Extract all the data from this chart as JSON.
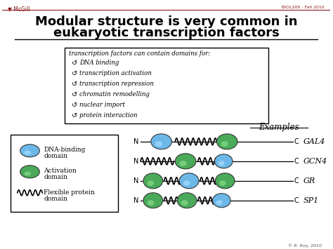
{
  "title_line1": "Modular structure is very common in",
  "title_line2": "eukaryotic transcription factors",
  "header_left": "McGill",
  "header_right": "BIOL200 - Fall 2010",
  "header_color": "#8B1A1A",
  "bg_color": "#FFFFFF",
  "box_text_header": "transcription factors can contain domains for:",
  "box_items": [
    "DNA binding",
    "transcription activation",
    "transcription repression",
    "chromatin remodelling",
    "nuclear import",
    "protein interaction"
  ],
  "examples_label": "Examples",
  "example_names": [
    "GAL4",
    "GCN4",
    "GR",
    "SP1"
  ],
  "legend_items": [
    "DNA-binding\ndomain",
    "Activation\ndomain",
    "Flexible protein\ndomain"
  ],
  "blue_color": "#6BB8E8",
  "green_color": "#4AAA5A",
  "footer": "© R. Roy, 2010"
}
